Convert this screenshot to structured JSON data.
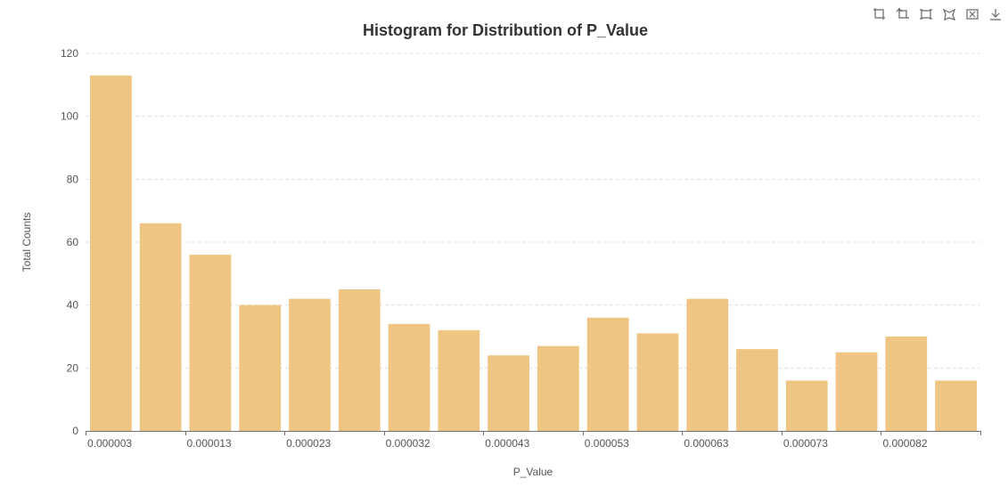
{
  "chart_data": {
    "type": "bar",
    "title": "Histogram for Distribution of P_Value",
    "xlabel": "P_Value",
    "ylabel": "Total Counts",
    "ylim": [
      0,
      120
    ],
    "y_ticks": [
      "0",
      "20",
      "40",
      "60",
      "80",
      "100",
      "120"
    ],
    "x_tick_labels": [
      "0.000003",
      "0.000013",
      "0.000023",
      "0.000032",
      "0.000043",
      "0.000053",
      "0.000063",
      "0.000073",
      "0.000082"
    ],
    "values": [
      113,
      66,
      56,
      40,
      42,
      45,
      34,
      32,
      24,
      27,
      36,
      31,
      42,
      26,
      16,
      25,
      30,
      16
    ],
    "grid": true,
    "bar_color": "#efc584"
  },
  "toolbox": {
    "icons": [
      "zoom-icon",
      "zoom-reset-icon",
      "rect-select-icon",
      "polygon-select-icon",
      "clear-select-icon",
      "download-icon"
    ]
  }
}
